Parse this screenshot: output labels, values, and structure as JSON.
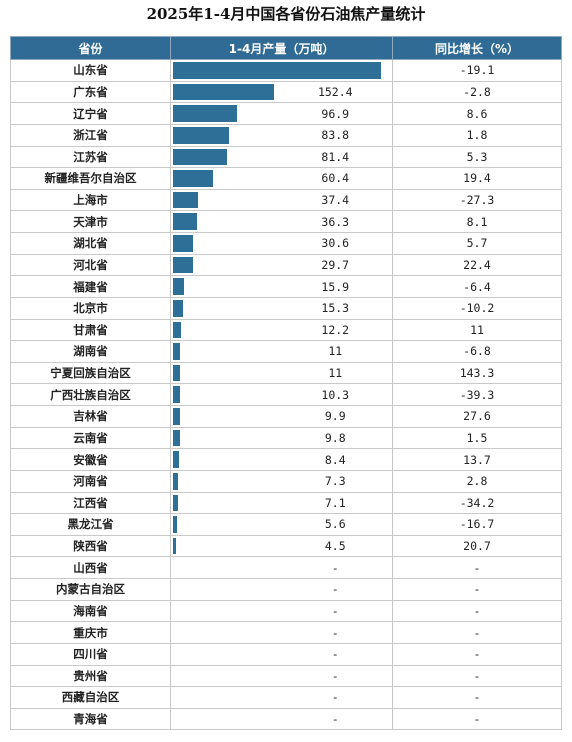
{
  "title": "2025年1-4月中国各省份石油焦产量统计",
  "headers": {
    "province": "省份",
    "production": "1-4月产量（万吨）",
    "growth": "同比增长（%）"
  },
  "colors": {
    "header_bg": "#2f6b94",
    "bar": "#2e6f98"
  },
  "chart_data": {
    "type": "table",
    "title": "2025年1-4月中国各省份石油焦产量统计",
    "columns": [
      "省份",
      "1-4月产量（万吨）",
      "同比增长（%）"
    ],
    "rows": [
      {
        "province": "山东省",
        "production": "312.8",
        "growth": "-19.1"
      },
      {
        "province": "广东省",
        "production": "152.4",
        "growth": "-2.8"
      },
      {
        "province": "辽宁省",
        "production": "96.9",
        "growth": "8.6"
      },
      {
        "province": "浙江省",
        "production": "83.8",
        "growth": "1.8"
      },
      {
        "province": "江苏省",
        "production": "81.4",
        "growth": "5.3"
      },
      {
        "province": "新疆维吾尔自治区",
        "production": "60.4",
        "growth": "19.4"
      },
      {
        "province": "上海市",
        "production": "37.4",
        "growth": "-27.3"
      },
      {
        "province": "天津市",
        "production": "36.3",
        "growth": "8.1"
      },
      {
        "province": "湖北省",
        "production": "30.6",
        "growth": "5.7"
      },
      {
        "province": "河北省",
        "production": "29.7",
        "growth": "22.4"
      },
      {
        "province": "福建省",
        "production": "15.9",
        "growth": "-6.4"
      },
      {
        "province": "北京市",
        "production": "15.3",
        "growth": "-10.2"
      },
      {
        "province": "甘肃省",
        "production": "12.2",
        "growth": "11"
      },
      {
        "province": "湖南省",
        "production": "11",
        "growth": "-6.8"
      },
      {
        "province": "宁夏回族自治区",
        "production": "11",
        "growth": "143.3"
      },
      {
        "province": "广西壮族自治区",
        "production": "10.3",
        "growth": "-39.3"
      },
      {
        "province": "吉林省",
        "production": "9.9",
        "growth": "27.6"
      },
      {
        "province": "云南省",
        "production": "9.8",
        "growth": "1.5"
      },
      {
        "province": "安徽省",
        "production": "8.4",
        "growth": "13.7"
      },
      {
        "province": "河南省",
        "production": "7.3",
        "growth": "2.8"
      },
      {
        "province": "江西省",
        "production": "7.1",
        "growth": "-34.2"
      },
      {
        "province": "黑龙江省",
        "production": "5.6",
        "growth": "-16.7"
      },
      {
        "province": "陕西省",
        "production": "4.5",
        "growth": "20.7"
      },
      {
        "province": "山西省",
        "production": "-",
        "growth": "-"
      },
      {
        "province": "内蒙古自治区",
        "production": "-",
        "growth": "-"
      },
      {
        "province": "海南省",
        "production": "-",
        "growth": "-"
      },
      {
        "province": "重庆市",
        "production": "-",
        "growth": "-"
      },
      {
        "province": "四川省",
        "production": "-",
        "growth": "-"
      },
      {
        "province": "贵州省",
        "production": "-",
        "growth": "-"
      },
      {
        "province": "西藏自治区",
        "production": "-",
        "growth": "-"
      },
      {
        "province": "青海省",
        "production": "-",
        "growth": "-"
      }
    ]
  }
}
